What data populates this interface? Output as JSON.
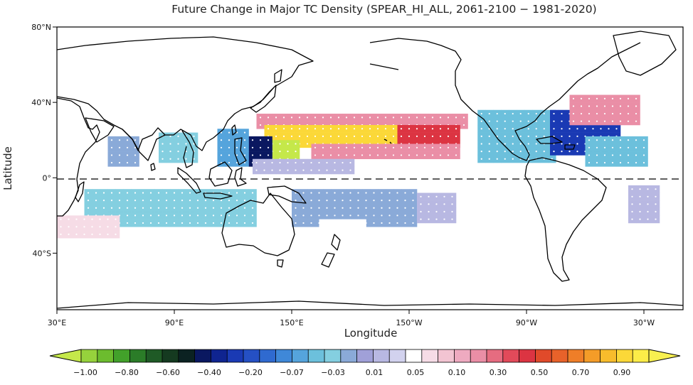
{
  "title": "Future Change in Major TC Density (SPEAR_HI_ALL, 2061-2100 − 1981-2020)",
  "xlabel": "Longitude",
  "ylabel": "Latitude",
  "lon_ticks": [
    {
      "value": 30,
      "label": "30°E"
    },
    {
      "value": 90,
      "label": "90°E"
    },
    {
      "value": 150,
      "label": "150°E"
    },
    {
      "value": 210,
      "label": "150°W"
    },
    {
      "value": 270,
      "label": "90°W"
    },
    {
      "value": 330,
      "label": "30°W"
    }
  ],
  "lat_ticks": [
    {
      "value": 80,
      "label": "80°N"
    },
    {
      "value": 40,
      "label": "40°N"
    },
    {
      "value": 0,
      "label": "0°"
    },
    {
      "value": -40,
      "label": "40°S"
    }
  ],
  "map_extent": {
    "lon": [
      30,
      350
    ],
    "lat": [
      -70,
      80
    ]
  },
  "colorbar": {
    "colors": [
      "#c5e84a",
      "#96d23c",
      "#6cbc2e",
      "#42a12a",
      "#2b7c28",
      "#1f5a26",
      "#153a20",
      "#0b2222",
      "#0a1860",
      "#0f2490",
      "#1a3ab4",
      "#2550c4",
      "#2f6ad0",
      "#3f88d8",
      "#55a4dc",
      "#6cc0dc",
      "#84cfe0",
      "#8aaad8",
      "#a0a0d8",
      "#b8b8e2",
      "#d2d2ee",
      "#ffffff",
      "#f6dce6",
      "#f2c4d2",
      "#eeaac0",
      "#ea8ea6",
      "#e66c80",
      "#e24a5a",
      "#dc3442",
      "#e04a2a",
      "#e8622a",
      "#ef7e28",
      "#f49c28",
      "#f8bc2c",
      "#fbd838",
      "#fcec48",
      "#f8f050"
    ],
    "labels": [
      "-1.00",
      "-0.80",
      "-0.60",
      "-0.40",
      "-0.20",
      "-0.07",
      "-0.03",
      "0.01",
      "0.05",
      "0.10",
      "0.30",
      "0.50",
      "0.70",
      "0.90"
    ]
  },
  "regions": [
    {
      "name": "wnp-north-pink",
      "lon": [
        134,
        196
      ],
      "lat": [
        32,
        40
      ],
      "value": 0.06
    },
    {
      "name": "wnp-mid-red",
      "lon": [
        132,
        240
      ],
      "lat": [
        26,
        32
      ],
      "value": 0.25
    },
    {
      "name": "wnp-yellow",
      "lon": [
        136,
        204
      ],
      "lat": [
        16,
        26
      ],
      "value": 0.85
    },
    {
      "name": "wnp-orange-fringe",
      "lon": [
        204,
        234
      ],
      "lat": [
        16,
        26
      ],
      "value": 0.45
    },
    {
      "name": "wnp-lime",
      "lon": [
        138,
        154
      ],
      "lat": [
        8,
        18
      ],
      "value": -1.0
    },
    {
      "name": "wnp-red-south",
      "lon": [
        160,
        234
      ],
      "lat": [
        10,
        16
      ],
      "value": 0.28
    },
    {
      "name": "wnp-dark-blue",
      "lon": [
        128,
        140
      ],
      "lat": [
        6,
        20
      ],
      "value": -0.6
    },
    {
      "name": "scs-blue",
      "lon": [
        112,
        128
      ],
      "lat": [
        6,
        24
      ],
      "value": -0.3
    },
    {
      "name": "philippines-purple",
      "lon": [
        130,
        180
      ],
      "lat": [
        2,
        8
      ],
      "value": -0.05
    },
    {
      "name": "bay-of-bengal",
      "lon": [
        82,
        100
      ],
      "lat": [
        8,
        24
      ],
      "value": -0.2
    },
    {
      "name": "arabian-sea",
      "lon": [
        56,
        70
      ],
      "lat": [
        6,
        22
      ],
      "value": -0.15
    },
    {
      "name": "epac-blue",
      "lon": [
        245,
        282
      ],
      "lat": [
        8,
        36
      ],
      "value": -0.25
    },
    {
      "name": "atl-dark",
      "lon": [
        282,
        318
      ],
      "lat": [
        12,
        34
      ],
      "value": -0.5
    },
    {
      "name": "atl-red",
      "lon": [
        292,
        326
      ],
      "lat": [
        28,
        44
      ],
      "value": 0.28
    },
    {
      "name": "atl-south-blue",
      "lon": [
        300,
        330
      ],
      "lat": [
        6,
        20
      ],
      "value": -0.25
    },
    {
      "name": "sio-dark",
      "lon": [
        56,
        100
      ],
      "lat": [
        -20,
        -10
      ],
      "value": -0.6
    },
    {
      "name": "sio-blue",
      "lon": [
        44,
        130
      ],
      "lat": [
        -26,
        -6
      ],
      "value": -0.2
    },
    {
      "name": "sio-pink-west",
      "lon": [
        30,
        62
      ],
      "lat": [
        -32,
        -22
      ],
      "value": 0.08
    },
    {
      "name": "spac-blue",
      "lon": [
        150,
        214
      ],
      "lat": [
        -26,
        -6
      ],
      "value": -0.15
    },
    {
      "name": "spac-purple",
      "lon": [
        214,
        234
      ],
      "lat": [
        -24,
        -10
      ],
      "value": -0.05
    },
    {
      "name": "spac-pink",
      "lon": [
        164,
        186
      ],
      "lat": [
        -30,
        -24
      ],
      "value": 0.06
    },
    {
      "name": "satl-purple",
      "lon": [
        322,
        336
      ],
      "lat": [
        -24,
        -6
      ],
      "value": -0.05
    }
  ]
}
